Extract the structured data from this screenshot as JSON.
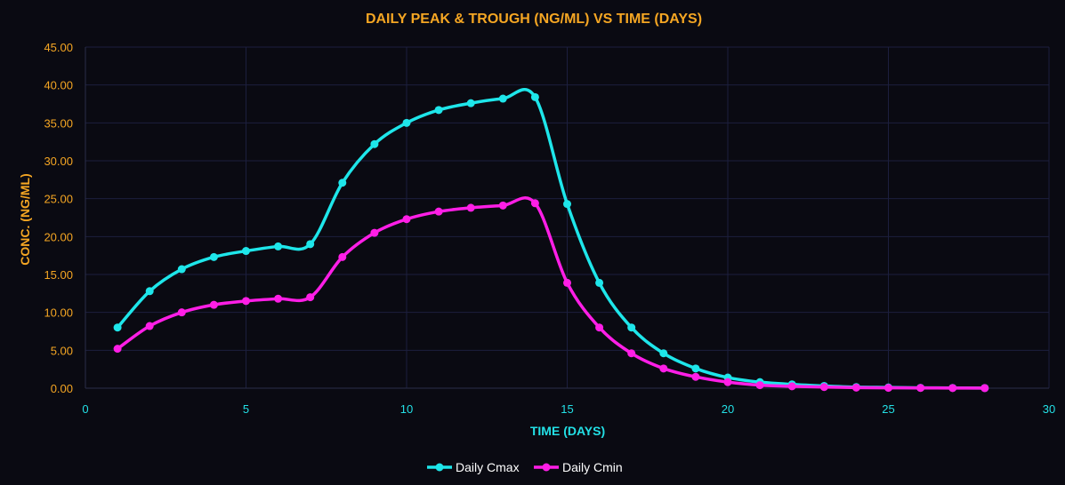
{
  "colors": {
    "background": "#0a0a12",
    "grid": "#1c1f3e",
    "axis": "#2a2d4a",
    "title": "#f5a623",
    "x_axis_text": "#23e0e6",
    "y_axis_text": "#f5a623",
    "legend_text": "#ffffff",
    "cmax": "#1ee6ea",
    "cmin": "#ff1ee6"
  },
  "chart_data": {
    "type": "line",
    "title": "DAILY PEAK & TROUGH (NG/ML) VS TIME (DAYS)",
    "xlabel": "TIME (DAYS)",
    "ylabel": "CONC. (NG/ML)",
    "xlim": [
      0,
      30
    ],
    "ylim": [
      0,
      45
    ],
    "x_ticks": [
      0,
      5,
      10,
      15,
      20,
      25,
      30
    ],
    "x_tick_labels": [
      "0",
      "5",
      "10",
      "15",
      "20",
      "25",
      "30"
    ],
    "y_ticks": [
      0,
      5,
      10,
      15,
      20,
      25,
      30,
      35,
      40,
      45
    ],
    "y_tick_labels": [
      "0.00",
      "5.00",
      "10.00",
      "15.00",
      "20.00",
      "25.00",
      "30.00",
      "35.00",
      "40.00",
      "45.00"
    ],
    "grid": true,
    "smooth": true,
    "legend_position": "bottom",
    "x": [
      1,
      2,
      3,
      4,
      5,
      6,
      7,
      8,
      9,
      10,
      11,
      12,
      13,
      14,
      15,
      16,
      17,
      18,
      19,
      20,
      21,
      22,
      23,
      24,
      25,
      26,
      27,
      28
    ],
    "series": [
      {
        "name": "Daily Cmax",
        "color_key": "cmax",
        "values": [
          8.0,
          12.8,
          15.7,
          17.3,
          18.1,
          18.7,
          19.0,
          27.1,
          32.2,
          35.0,
          36.7,
          37.6,
          38.2,
          38.4,
          24.3,
          13.9,
          8.0,
          4.6,
          2.6,
          1.4,
          0.8,
          0.5,
          0.3,
          0.15,
          0.1,
          0.05,
          0.03,
          0.02
        ]
      },
      {
        "name": "Daily Cmin",
        "color_key": "cmin",
        "values": [
          5.2,
          8.2,
          10.0,
          11.0,
          11.5,
          11.8,
          12.0,
          17.3,
          20.5,
          22.3,
          23.3,
          23.8,
          24.1,
          24.4,
          13.9,
          8.0,
          4.6,
          2.6,
          1.5,
          0.8,
          0.4,
          0.25,
          0.15,
          0.08,
          0.05,
          0.03,
          0.02,
          0.01
        ]
      }
    ]
  }
}
